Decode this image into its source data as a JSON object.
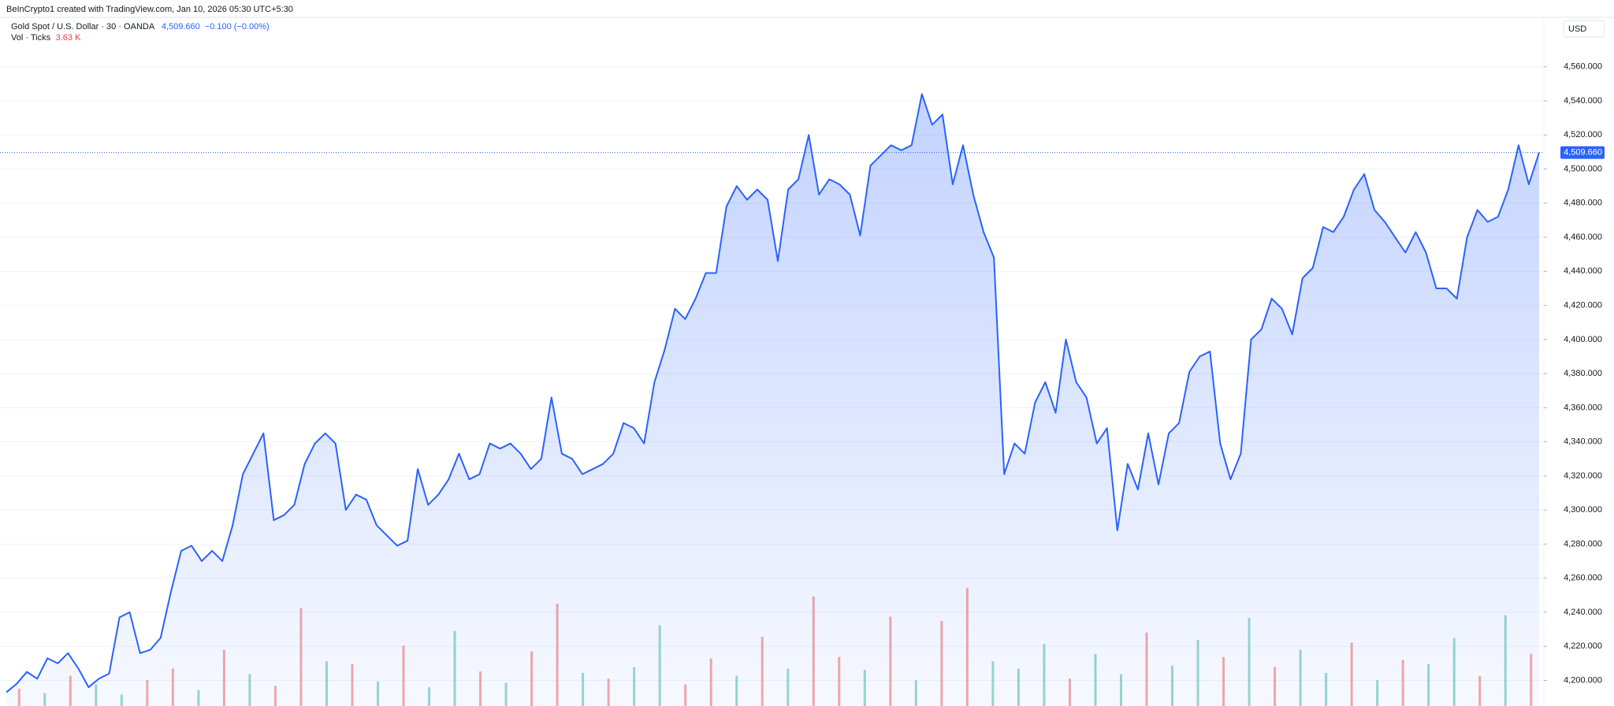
{
  "chart_data": {
    "type": "area",
    "title": "BeInCrypto1 created with TradingView.com, Jan 10, 2026 05:30 UTC+5:30",
    "quote": {
      "price": "4,509.660",
      "change": "−0.100 (−0.00%)"
    },
    "currency": "USD",
    "last_price": {
      "value": 4509.66,
      "label": "4,509.660"
    },
    "ylim": [
      4185,
      4589
    ],
    "yticks": [
      {
        "value": 4200,
        "label": "4,200.000"
      },
      {
        "value": 4220,
        "label": "4,220.000"
      },
      {
        "value": 4240,
        "label": "4,240.000"
      },
      {
        "value": 4260,
        "label": "4,260.000"
      },
      {
        "value": 4280,
        "label": "4,280.000"
      },
      {
        "value": 4300,
        "label": "4,300.000"
      },
      {
        "value": 4320,
        "label": "4,320.000"
      },
      {
        "value": 4340,
        "label": "4,340.000"
      },
      {
        "value": 4360,
        "label": "4,360.000"
      },
      {
        "value": 4380,
        "label": "4,380.000"
      },
      {
        "value": 4400,
        "label": "4,400.000"
      },
      {
        "value": 4420,
        "label": "4,420.000"
      },
      {
        "value": 4440,
        "label": "4,440.000"
      },
      {
        "value": 4460,
        "label": "4,460.000"
      },
      {
        "value": 4480,
        "label": "4,480.000"
      },
      {
        "value": 4500,
        "label": "4,500.000"
      },
      {
        "value": 4520,
        "label": "4,520.000"
      },
      {
        "value": 4540,
        "label": "4,540.000"
      },
      {
        "value": 4560,
        "label": "4,560.000"
      }
    ],
    "grid": true,
    "series": [
      {
        "name": "Gold Spot / U.S. Dollar · 30 · OANDA",
        "color": "#2962ff",
        "values": [
          4193,
          4198,
          4205,
          4201,
          4213,
          4210,
          4216,
          4207,
          4196,
          4201,
          4204,
          4237,
          4240,
          4216,
          4218,
          4225,
          4252,
          4276,
          4279,
          4270,
          4276,
          4270,
          4291,
          4321,
          4333,
          4345,
          4294,
          4297,
          4303,
          4327,
          4339,
          4345,
          4339,
          4300,
          4309,
          4306,
          4291,
          4285,
          4279,
          4282,
          4324,
          4303,
          4309,
          4318,
          4333,
          4318,
          4321,
          4339,
          4336,
          4339,
          4333,
          4324,
          4330,
          4366,
          4333,
          4330,
          4321,
          4324,
          4327,
          4333,
          4351,
          4348,
          4339,
          4375,
          4394,
          4418,
          4412,
          4424,
          4439,
          4439,
          4478,
          4490,
          4482,
          4488,
          4482,
          4446,
          4488,
          4494,
          4520,
          4485,
          4494,
          4491,
          4485,
          4461,
          4502,
          4508,
          4514,
          4511,
          4514,
          4544,
          4526,
          4532,
          4491,
          4514,
          4485,
          4463,
          4448,
          4321,
          4339,
          4333,
          4363,
          4375,
          4357,
          4400,
          4375,
          4366,
          4339,
          4348,
          4288,
          4327,
          4312,
          4345,
          4315,
          4345,
          4351,
          4381,
          4390,
          4393,
          4339,
          4318,
          4333,
          4400,
          4406,
          4424,
          4418,
          4403,
          4436,
          4442,
          4466,
          4463,
          4472,
          4488,
          4497,
          4476,
          4469,
          4460,
          4451,
          4463,
          4451,
          4430,
          4430,
          4424,
          4460,
          4476,
          4469,
          4472,
          4488,
          4514,
          4491,
          4509.66
        ]
      }
    ],
    "volume": {
      "name": "Vol · Ticks",
      "last_label": "3.63 K",
      "values": [
        1200,
        900,
        2100,
        1500,
        800,
        1800,
        2600,
        1100,
        3900,
        2200,
        1400,
        6800,
        3100,
        2900,
        1700,
        4200,
        1300,
        5200,
        2400,
        1600,
        3800,
        7100,
        2300,
        1900,
        2700,
        5600,
        1500,
        3300,
        2100,
        4800,
        2600,
        7600,
        3400,
        2500,
        6200,
        1800,
        5900,
        8200,
        3100,
        2600,
        4300,
        1900,
        3600,
        2200,
        5100,
        2800,
        4600,
        3400,
        6100,
        2700,
        3900,
        2300,
        4400,
        1800,
        3200,
        2900,
        4700,
        2100,
        6300,
        3630
      ],
      "colors": [
        "#f7a9a7",
        "#9ad8ce",
        "#f7a9a7",
        "#9ad8ce",
        "#9ad8ce",
        "#f7a9a7",
        "#f7a9a7",
        "#9ad8ce",
        "#f7a9a7",
        "#9ad8ce",
        "#f7a9a7",
        "#f7a9a7",
        "#9ad8ce",
        "#f7a9a7",
        "#9ad8ce",
        "#f7a9a7",
        "#9ad8ce",
        "#9ad8ce",
        "#f7a9a7",
        "#9ad8ce",
        "#f7a9a7",
        "#f7a9a7",
        "#9ad8ce",
        "#f7a9a7",
        "#9ad8ce",
        "#9ad8ce",
        "#f7a9a7",
        "#f7a9a7",
        "#9ad8ce",
        "#f7a9a7",
        "#9ad8ce",
        "#f7a9a7",
        "#f7a9a7",
        "#9ad8ce",
        "#f7a9a7",
        "#9ad8ce",
        "#f7a9a7",
        "#f7a9a7",
        "#9ad8ce",
        "#9ad8ce",
        "#9ad8ce",
        "#f7a9a7",
        "#9ad8ce",
        "#9ad8ce",
        "#f7a9a7",
        "#9ad8ce",
        "#9ad8ce",
        "#f7a9a7",
        "#9ad8ce",
        "#f7a9a7",
        "#9ad8ce",
        "#9ad8ce",
        "#f7a9a7",
        "#9ad8ce",
        "#f7a9a7",
        "#9ad8ce",
        "#9ad8ce",
        "#f7a9a7",
        "#9ad8ce",
        "#f7a9a7"
      ]
    }
  }
}
